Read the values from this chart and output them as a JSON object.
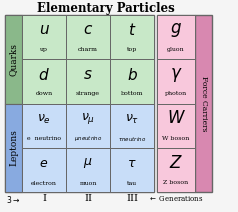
{
  "title": "Elementary Particles",
  "bg_color": "#f5f5f5",
  "quark_bg": "#a8cfa8",
  "lepton_bg": "#a8c4f0",
  "force_bg": "#f0a8c8",
  "cell_quark": "#c8e8c8",
  "cell_lepton": "#c8ddf8",
  "cell_force": "#f8c8dc",
  "label_quark_bg": "#8ab88a",
  "label_lepton_bg": "#88aae0",
  "label_force_bg": "#d888b0",
  "quarks": [
    {
      "symbol": "u",
      "name": "up",
      "row": 0,
      "col": 0
    },
    {
      "symbol": "c",
      "name": "charm",
      "row": 0,
      "col": 1
    },
    {
      "symbol": "t",
      "name": "top",
      "row": 0,
      "col": 2
    },
    {
      "symbol": "d",
      "name": "down",
      "row": 1,
      "col": 0
    },
    {
      "symbol": "s",
      "name": "strange",
      "row": 1,
      "col": 1
    },
    {
      "symbol": "b",
      "name": "bottom",
      "row": 1,
      "col": 2
    }
  ],
  "leptons": [
    {
      "symbol": "\\nu_e",
      "name": "e  neutrino",
      "row": 0,
      "col": 0
    },
    {
      "symbol": "\\nu_\\mu",
      "name": "\\mu  neutrino",
      "row": 0,
      "col": 1
    },
    {
      "symbol": "\\nu_\\tau",
      "name": "\\tau  neutrino",
      "row": 0,
      "col": 2
    },
    {
      "symbol": "e",
      "name": "electron",
      "row": 1,
      "col": 0
    },
    {
      "symbol": "\\mu",
      "name": "muon",
      "row": 1,
      "col": 1
    },
    {
      "symbol": "\\tau",
      "name": "tau",
      "row": 1,
      "col": 2
    }
  ],
  "force_carriers": [
    {
      "symbol": "g",
      "name": "gluon"
    },
    {
      "symbol": "\\gamma",
      "name": "photon"
    },
    {
      "symbol": "W",
      "name": "W boson"
    },
    {
      "symbol": "Z",
      "name": "Z boson"
    }
  ],
  "generations": [
    "I",
    "II",
    "III"
  ]
}
